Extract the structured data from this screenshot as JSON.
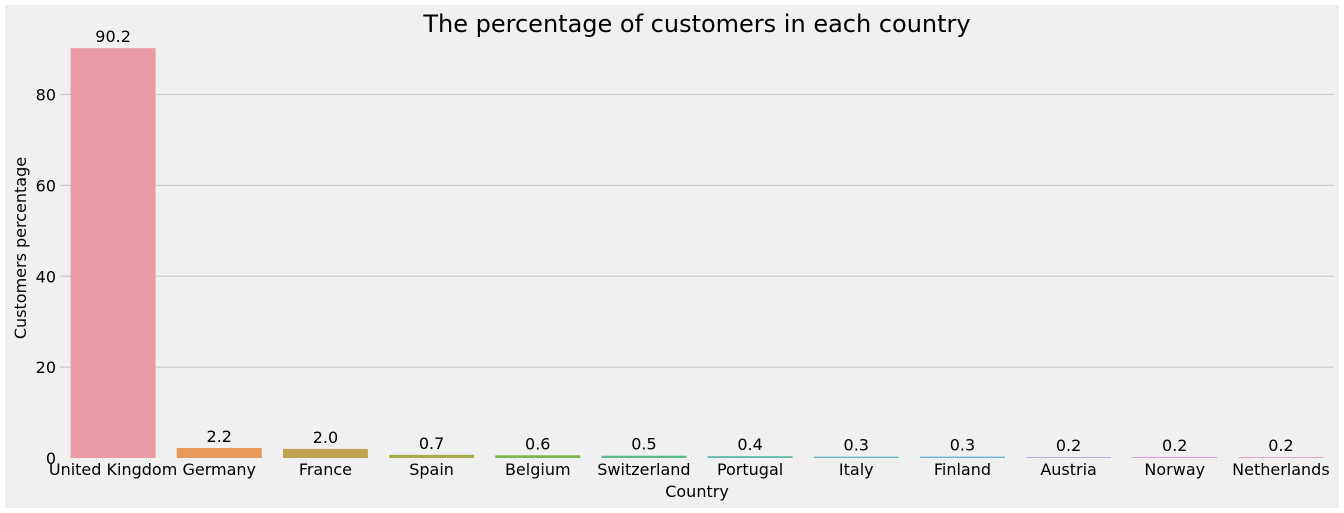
{
  "chart_data": {
    "type": "bar",
    "title": "The percentage of customers in each country",
    "xlabel": "Country",
    "ylabel": "Customers percentage",
    "categories": [
      "United Kingdom",
      "Germany",
      "France",
      "Spain",
      "Belgium",
      "Switzerland",
      "Portugal",
      "Italy",
      "Finland",
      "Austria",
      "Norway",
      "Netherlands"
    ],
    "values": [
      90.2,
      2.2,
      2.0,
      0.7,
      0.6,
      0.5,
      0.4,
      0.3,
      0.3,
      0.2,
      0.2,
      0.2
    ],
    "value_labels": [
      "90.2",
      "2.2",
      "2.0",
      "0.7",
      "0.6",
      "0.5",
      "0.4",
      "0.3",
      "0.3",
      "0.2",
      "0.2",
      "0.2"
    ],
    "colors": [
      "#ea9aa5",
      "#e99a5a",
      "#bfa24f",
      "#a8ad4a",
      "#7fb44f",
      "#5dba8a",
      "#5fb9a8",
      "#62b8bd",
      "#67b3d6",
      "#a9a6e8",
      "#dc93df",
      "#ea97c4"
    ],
    "ylim": [
      0,
      92
    ],
    "yticks": [
      0,
      20,
      40,
      60,
      80
    ],
    "ytick_labels": [
      "0",
      "20",
      "40",
      "60",
      "80"
    ],
    "grid": true,
    "background_color": "#f0f0f0"
  }
}
